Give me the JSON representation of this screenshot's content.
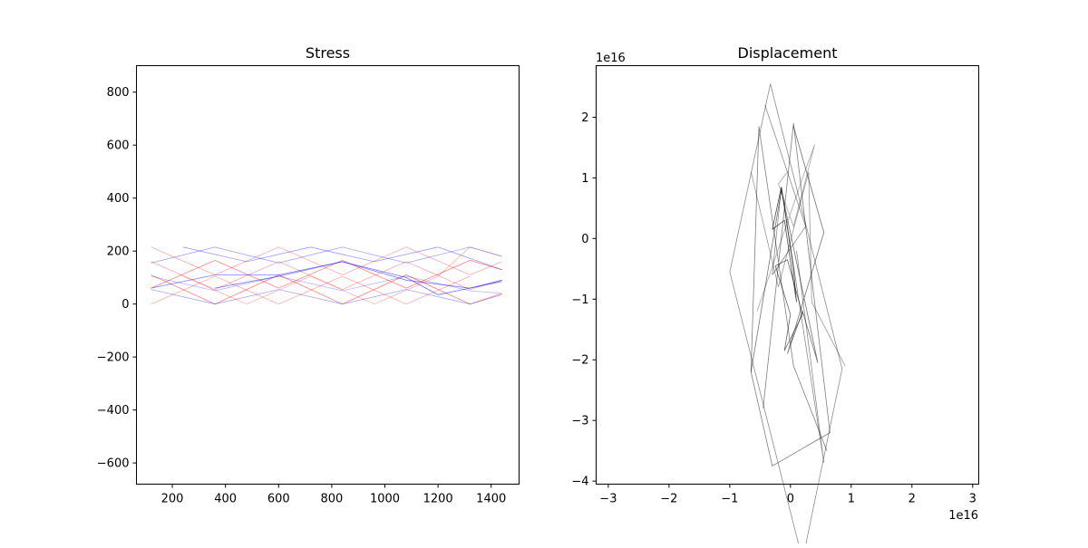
{
  "chart_data": [
    {
      "type": "line",
      "title": "Stress",
      "xlim": [
        65,
        1505
      ],
      "ylim": [
        -680,
        900
      ],
      "xticks": [
        200,
        400,
        600,
        800,
        1000,
        1200,
        1400
      ],
      "yticks": [
        -600,
        -400,
        -200,
        0,
        200,
        400,
        600,
        800
      ],
      "xtick_labels": [
        "200",
        "400",
        "600",
        "800",
        "1000",
        "1200",
        "1400"
      ],
      "ytick_labels": [
        "−600",
        "−400",
        "−200",
        "0",
        "200",
        "400",
        "600",
        "800"
      ],
      "grid": false,
      "colors": {
        "red": "#ff0000",
        "blue": "#0000ff"
      },
      "series": [
        {
          "color": "red",
          "alpha": 0.35,
          "points": [
            [
              120,
              0
            ],
            [
              360,
              105
            ],
            [
              600,
              0
            ],
            [
              840,
              105
            ],
            [
              1080,
              0
            ],
            [
              1320,
              105
            ]
          ]
        },
        {
          "color": "red",
          "alpha": 0.35,
          "points": [
            [
              120,
              215
            ],
            [
              360,
              110
            ],
            [
              600,
              215
            ],
            [
              840,
              110
            ],
            [
              1080,
              215
            ],
            [
              1320,
              110
            ],
            [
              1440,
              160
            ]
          ]
        },
        {
          "color": "red",
          "alpha": 0.5,
          "points": [
            [
              120,
              60
            ],
            [
              360,
              165
            ],
            [
              600,
              60
            ],
            [
              840,
              165
            ],
            [
              1080,
              60
            ],
            [
              1320,
              165
            ],
            [
              1440,
              130
            ]
          ]
        },
        {
          "color": "red",
          "alpha": 0.5,
          "points": [
            [
              120,
              110
            ],
            [
              360,
              0
            ],
            [
              600,
              110
            ],
            [
              840,
              0
            ],
            [
              1080,
              110
            ],
            [
              1320,
              0
            ],
            [
              1440,
              40
            ]
          ]
        },
        {
          "color": "red",
          "alpha": 0.35,
          "points": [
            [
              120,
              160
            ],
            [
              360,
              55
            ],
            [
              600,
              160
            ],
            [
              840,
              55
            ],
            [
              1080,
              160
            ],
            [
              1320,
              55
            ],
            [
              1440,
              90
            ]
          ]
        },
        {
          "color": "red",
          "alpha": 0.3,
          "points": [
            [
              240,
              105
            ],
            [
              480,
              0
            ],
            [
              720,
              105
            ],
            [
              960,
              0
            ],
            [
              1200,
              105
            ],
            [
              1320,
              215
            ],
            [
              1440,
              180
            ]
          ]
        },
        {
          "color": "blue",
          "alpha": 0.35,
          "points": [
            [
              120,
              155
            ],
            [
              360,
              215
            ],
            [
              600,
              155
            ],
            [
              840,
              215
            ],
            [
              1080,
              155
            ],
            [
              1320,
              215
            ],
            [
              1440,
              180
            ]
          ]
        },
        {
          "color": "blue",
          "alpha": 0.3,
          "points": [
            [
              120,
              105
            ],
            [
              360,
              50
            ],
            [
              600,
              105
            ],
            [
              840,
              50
            ],
            [
              1080,
              105
            ],
            [
              1320,
              50
            ],
            [
              1440,
              40
            ]
          ]
        },
        {
          "color": "blue",
          "alpha": 0.5,
          "points": [
            [
              120,
              60
            ],
            [
              360,
              110
            ],
            [
              600,
              110
            ],
            [
              840,
              160
            ],
            [
              1080,
              90
            ],
            [
              1320,
              60
            ],
            [
              1440,
              90
            ]
          ]
        },
        {
          "color": "blue",
          "alpha": 0.35,
          "points": [
            [
              120,
              55
            ],
            [
              360,
              0
            ],
            [
              600,
              55
            ],
            [
              840,
              0
            ],
            [
              1080,
              55
            ],
            [
              1320,
              0
            ],
            [
              1440,
              35
            ]
          ]
        },
        {
          "color": "blue",
          "alpha": 0.4,
          "points": [
            [
              240,
              215
            ],
            [
              480,
              160
            ],
            [
              720,
              215
            ],
            [
              960,
              160
            ],
            [
              1200,
              215
            ],
            [
              1440,
              130
            ]
          ]
        },
        {
          "color": "blue",
          "alpha": 0.55,
          "points": [
            [
              360,
              60
            ],
            [
              600,
              105
            ],
            [
              840,
              160
            ],
            [
              1080,
              100
            ],
            [
              1200,
              35
            ],
            [
              1440,
              85
            ]
          ]
        }
      ]
    },
    {
      "type": "line",
      "title": "Displacement",
      "xlim": [
        -3.2,
        3.1
      ],
      "ylim": [
        -4.05,
        2.85
      ],
      "xticks": [
        -3,
        -2,
        -1,
        0,
        1,
        2,
        3
      ],
      "yticks": [
        -4,
        -3,
        -2,
        -1,
        0,
        1,
        2
      ],
      "xtick_labels": [
        "−3",
        "−2",
        "−1",
        "0",
        "1",
        "2",
        "3"
      ],
      "ytick_labels": [
        "−4",
        "−3",
        "−2",
        "−1",
        "0",
        "1",
        "2"
      ],
      "x_offset_label": "1e16",
      "y_offset_label": "1e16",
      "grid": false,
      "colors": {
        "line": "#000000"
      },
      "series": [
        {
          "alpha": 0.45,
          "points": [
            [
              -1.0,
              -0.55
            ],
            [
              -0.33,
              2.55
            ],
            [
              0.85,
              -2.15
            ],
            [
              0.2,
              -5.3
            ],
            [
              -1.0,
              -0.55
            ]
          ]
        },
        {
          "alpha": 0.5,
          "points": [
            [
              -0.45,
              -2.8
            ],
            [
              0.05,
              1.9
            ],
            [
              0.65,
              -3.2
            ],
            [
              -0.3,
              -3.75
            ],
            [
              -0.65,
              -2.2
            ],
            [
              -0.52,
              1.85
            ],
            [
              0.05,
              -2.1
            ],
            [
              0.6,
              -3.5
            ]
          ]
        },
        {
          "alpha": 0.7,
          "points": [
            [
              -0.3,
              0.15
            ],
            [
              -0.15,
              0.85
            ],
            [
              0.05,
              -0.5
            ],
            [
              0.1,
              -1.05
            ],
            [
              -0.1,
              0.3
            ],
            [
              -0.3,
              0.15
            ]
          ]
        },
        {
          "alpha": 0.55,
          "points": [
            [
              -0.65,
              -2.2
            ],
            [
              -0.15,
              0.8
            ],
            [
              0.45,
              -2.05
            ],
            [
              0.2,
              -1.2
            ],
            [
              -0.05,
              -1.9
            ],
            [
              0.55,
              0.1
            ],
            [
              0.05,
              1.85
            ]
          ]
        },
        {
          "alpha": 0.45,
          "points": [
            [
              -0.42,
              2.2
            ],
            [
              0.25,
              0.2
            ],
            [
              -0.3,
              -0.6
            ],
            [
              -0.15,
              0.85
            ],
            [
              0.55,
              -3.7
            ],
            [
              0.1,
              -0.2
            ]
          ]
        },
        {
          "alpha": 0.4,
          "points": [
            [
              -0.65,
              1.1
            ],
            [
              -0.2,
              -0.8
            ],
            [
              0.3,
              1.1
            ],
            [
              0.35,
              -1.05
            ],
            [
              0.9,
              -2.1
            ]
          ]
        },
        {
          "alpha": 0.6,
          "points": [
            [
              -0.25,
              -0.45
            ],
            [
              0.0,
              -1.25
            ],
            [
              -0.1,
              -1.85
            ],
            [
              0.2,
              -1.25
            ],
            [
              -0.05,
              -0.35
            ],
            [
              -0.25,
              -0.45
            ]
          ]
        },
        {
          "alpha": 0.35,
          "points": [
            [
              -0.55,
              -1.2
            ],
            [
              0.2,
              1.0
            ],
            [
              0.4,
              1.55
            ],
            [
              0.05,
              0.2
            ],
            [
              -0.2,
              0.9
            ],
            [
              -0.05,
              1.1
            ]
          ]
        }
      ]
    }
  ]
}
